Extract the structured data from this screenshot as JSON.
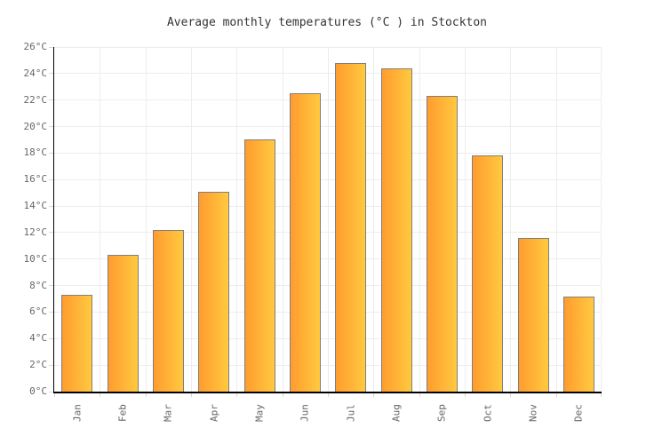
{
  "chart_data": {
    "type": "bar",
    "title": "Average monthly temperatures (°C ) in Stockton",
    "categories": [
      "Jan",
      "Feb",
      "Mar",
      "Apr",
      "May",
      "Jun",
      "Jul",
      "Aug",
      "Sep",
      "Oct",
      "Nov",
      "Dec"
    ],
    "values": [
      7.3,
      10.3,
      12.2,
      15.1,
      19.0,
      22.5,
      24.8,
      24.4,
      22.3,
      17.8,
      11.6,
      7.2
    ],
    "unit": "°C",
    "ylim": [
      0,
      26
    ],
    "ytick_step": 2,
    "yticks": [
      {
        "label": "26°C",
        "value": 26
      },
      {
        "label": "24°C",
        "value": 24
      },
      {
        "label": "22°C",
        "value": 22
      },
      {
        "label": "20°C",
        "value": 20
      },
      {
        "label": "18°C",
        "value": 18
      },
      {
        "label": "16°C",
        "value": 16
      },
      {
        "label": "14°C",
        "value": 14
      },
      {
        "label": "12°C",
        "value": 12
      },
      {
        "label": "10°C",
        "value": 10
      },
      {
        "label": "8°C",
        "value": 8
      },
      {
        "label": "6°C",
        "value": 6
      },
      {
        "label": "4°C",
        "value": 4
      },
      {
        "label": "2°C",
        "value": 2
      },
      {
        "label": "0°C",
        "value": 0
      }
    ],
    "grid": true,
    "legend": false,
    "colors": {
      "bar_gradient_left": "#ff9c2f",
      "bar_gradient_right": "#ffc93f",
      "bar_border": "#7f7f7f",
      "gridline": "#ededed",
      "axis": "#000000",
      "tick_label": "#666666",
      "title": "#333333"
    }
  }
}
